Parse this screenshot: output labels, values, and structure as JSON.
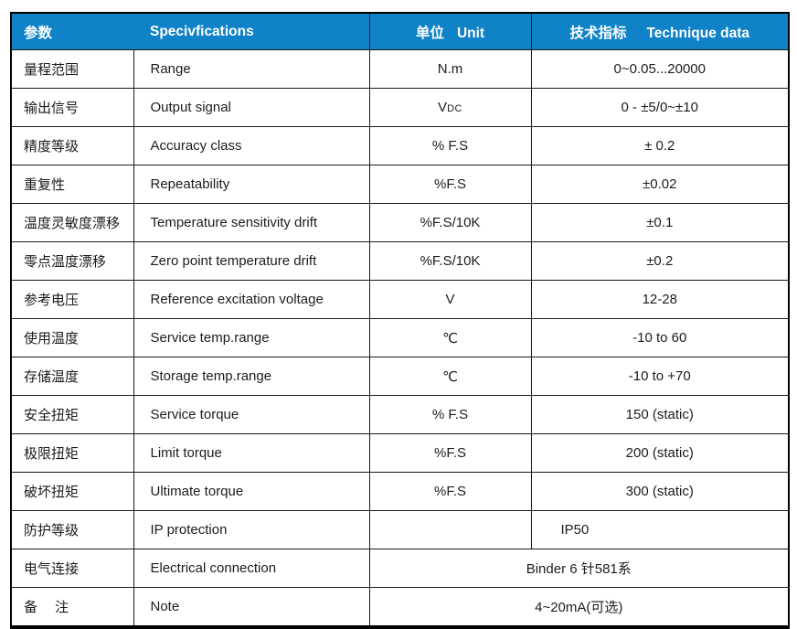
{
  "colors": {
    "header_bg": "#0F82C8",
    "header_text": "#ffffff",
    "body_text": "#1c1c1c",
    "border": "#1a1a1a"
  },
  "table": {
    "header": {
      "param": "参数",
      "spec": "Specivfications",
      "unit_zh": "单位",
      "unit_en": "Unit",
      "data_zh": "技术指标",
      "data_en": "Technique data"
    },
    "rows": [
      {
        "param": "量程范围",
        "spec": "Range",
        "unit": "N.m",
        "value": "0~0.05...20000"
      },
      {
        "param": "输出信号",
        "spec": "Output signal",
        "unit": "V",
        "unit_sub": "DC",
        "value": "0 - ±5/0~±10"
      },
      {
        "param": "精度等级",
        "spec": "Accuracy class",
        "unit": "% F.S",
        "value": "± 0.2"
      },
      {
        "param": "重复性",
        "spec": "Repeatability",
        "unit": "%F.S",
        "value": "±0.02"
      },
      {
        "param": "温度灵敏度漂移",
        "spec": "Temperature sensitivity drift",
        "unit": "%F.S/10K",
        "value": "±0.1"
      },
      {
        "param": "零点温度漂移",
        "spec": "Zero point temperature drift",
        "unit": "%F.S/10K",
        "value": "±0.2"
      },
      {
        "param": "参考电压",
        "spec": "Reference excitation voltage",
        "unit": "V",
        "value": "12-28"
      },
      {
        "param": "使用温度",
        "spec": "Service temp.range",
        "unit": "℃",
        "value": "-10 to 60"
      },
      {
        "param": "存储温度",
        "spec": "Storage temp.range",
        "unit": "℃",
        "value": "-10 to +70"
      },
      {
        "param": "安全扭矩",
        "spec": "Service torque",
        "unit": "% F.S",
        "value": "150 (static)"
      },
      {
        "param": "极限扭矩",
        "spec": "Limit torque",
        "unit": "%F.S",
        "value": "200 (static)"
      },
      {
        "param": "破坏扭矩",
        "spec": "Ultimate torque",
        "unit": "%F.S",
        "value": "300 (static)"
      },
      {
        "param": "防护等级",
        "spec": "IP protection",
        "unit": "",
        "value": "IP50",
        "value_align": "left"
      },
      {
        "param": "电气连接",
        "spec": "Electrical connection",
        "merge": true,
        "value": "Binder 6 针581系"
      },
      {
        "param": "备　 注",
        "spec": "Note",
        "merge": true,
        "value": "4~20mA(可选)"
      }
    ]
  }
}
